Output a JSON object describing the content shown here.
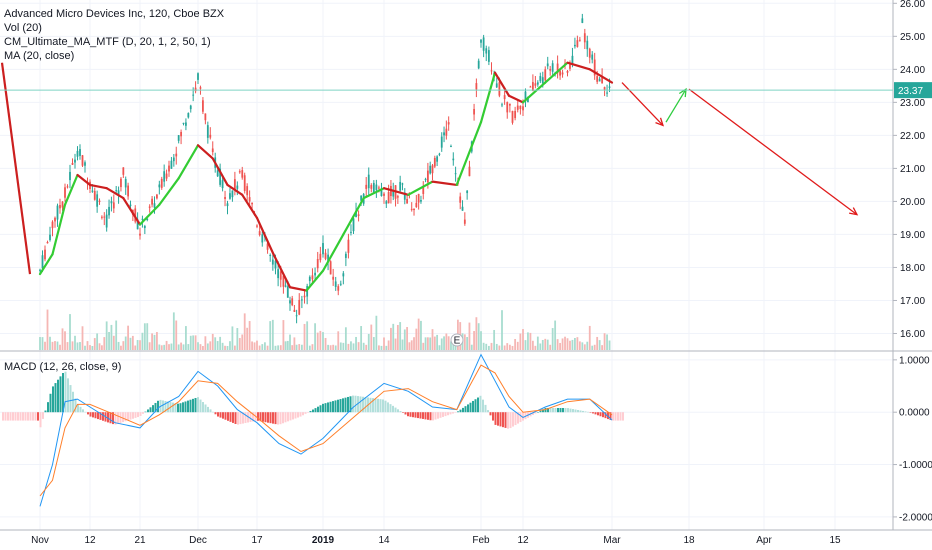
{
  "legend": {
    "title": "Advanced Micro Devices Inc, 120, Cboe BZX",
    "indicators": [
      "Vol (20)",
      "CM_Ultimate_MA_MTF (D, 20, 1, 2, 50, 1)",
      "MA (20, close)"
    ],
    "macd_label": "MACD (12, 26, close, 9)"
  },
  "price_badge": "23.37",
  "earnings_marker": "E",
  "colors": {
    "up": "#26a69a",
    "down": "#ef5350",
    "ma_up": "#33cc33",
    "ma_down": "#cc1f1f",
    "hline": "#7fd3c4",
    "macd": "#2196f3",
    "signal": "#ff7f2a",
    "badge": "#26a69a",
    "arrow_red": "#e01b1b",
    "arrow_green": "#2ecc40"
  },
  "chart_data": [
    {
      "type": "candlestick",
      "ylim": [
        15.5,
        26.1
      ],
      "y_ticks": [
        "26.00",
        "25.00",
        "24.00",
        "23.00",
        "22.00",
        "21.00",
        "20.00",
        "19.00",
        "18.00",
        "17.00",
        "16.00"
      ],
      "x_ticks": [
        "Nov",
        "12",
        "21",
        "Dec",
        "17",
        "2019",
        "14",
        "Feb",
        "12",
        "Mar",
        "18",
        "Apr",
        "15"
      ],
      "close_path": [
        [
          "Nov",
          17.9
        ],
        [
          "",
          19.3
        ],
        [
          "",
          20.2
        ],
        [
          "",
          21.6
        ],
        [
          "12",
          20.6
        ],
        [
          "",
          19.4
        ],
        [
          "",
          20.8
        ],
        [
          "21",
          19.1
        ],
        [
          "",
          20.3
        ],
        [
          "",
          21.8
        ],
        [
          "Dec",
          23.7
        ],
        [
          "",
          21.4
        ],
        [
          "",
          20.1
        ],
        [
          "",
          20.8
        ],
        [
          "17",
          19.4
        ],
        [
          "",
          18.3
        ],
        [
          "",
          17.6
        ],
        [
          "",
          16.6
        ],
        [
          "",
          17.5
        ],
        [
          "2019",
          18.6
        ],
        [
          "",
          17.3
        ],
        [
          "",
          19.3
        ],
        [
          "",
          20.6
        ],
        [
          "14",
          20.1
        ],
        [
          "",
          20.4
        ],
        [
          "",
          19.8
        ],
        [
          "",
          21.1
        ],
        [
          "",
          22.3
        ],
        [
          "",
          19.3
        ],
        [
          "Feb",
          25.0
        ],
        [
          "",
          24.2
        ],
        [
          "",
          23.1
        ],
        [
          "",
          22.6
        ],
        [
          "12",
          23.0
        ],
        [
          "",
          23.6
        ],
        [
          "",
          24.1
        ],
        [
          "",
          23.9
        ],
        [
          "",
          25.3
        ],
        [
          "",
          23.8
        ],
        [
          "Mar",
          23.37
        ]
      ],
      "ma_line": [
        [
          "Nov",
          17.8
        ],
        [
          "",
          18.4
        ],
        [
          "",
          19.9
        ],
        [
          "",
          20.8
        ],
        [
          "12",
          20.5
        ],
        [
          "",
          20.4
        ],
        [
          "",
          20.1
        ],
        [
          "21",
          19.3
        ],
        [
          "",
          19.9
        ],
        [
          "",
          20.7
        ],
        [
          "Dec",
          21.7
        ],
        [
          "",
          21.3
        ],
        [
          "",
          20.5
        ],
        [
          "",
          20.2
        ],
        [
          "17",
          19.5
        ],
        [
          "",
          18.4
        ],
        [
          "",
          17.4
        ],
        [
          "",
          17.3
        ],
        [
          "2019",
          17.9
        ],
        [
          "",
          19.0
        ],
        [
          "",
          20.1
        ],
        [
          "14",
          20.4
        ],
        [
          "",
          20.2
        ],
        [
          "",
          20.6
        ],
        [
          "",
          20.5
        ],
        [
          "Feb",
          22.4
        ],
        [
          "",
          23.9
        ],
        [
          "",
          23.2
        ],
        [
          "12",
          23.0
        ],
        [
          "",
          23.6
        ],
        [
          "",
          24.2
        ],
        [
          "",
          24.0
        ],
        [
          "Mar",
          23.6
        ]
      ],
      "projection": [
        {
          "from": [
            "Mar",
            23.6
          ],
          "to": [
            "",
            22.3
          ],
          "color": "red"
        },
        {
          "from": [
            "",
            22.4
          ],
          "to": [
            "18",
            23.4
          ],
          "color": "green"
        },
        {
          "from": [
            "18",
            23.4
          ],
          "to": [
            "15",
            19.6
          ],
          "color": "red"
        }
      ],
      "current_price": 23.37
    },
    {
      "type": "macd",
      "ylim": [
        -2.25,
        1.15
      ],
      "y_ticks": [
        "1.0000",
        "0.0000",
        "-1.0000",
        "-2.0000"
      ],
      "macd": [
        [
          "Nov",
          -1.8
        ],
        [
          "",
          -1.0
        ],
        [
          "",
          0.2
        ],
        [
          "",
          0.25
        ],
        [
          "12",
          0.1
        ],
        [
          "",
          -0.2
        ],
        [
          "21",
          -0.3
        ],
        [
          "",
          0.1
        ],
        [
          "",
          0.3
        ],
        [
          "Dec",
          0.78
        ],
        [
          "",
          0.5
        ],
        [
          "",
          0.05
        ],
        [
          "17",
          -0.2
        ],
        [
          "",
          -0.6
        ],
        [
          "",
          -0.8
        ],
        [
          "2019",
          -0.5
        ],
        [
          "",
          0.1
        ],
        [
          "14",
          0.55
        ],
        [
          "",
          0.4
        ],
        [
          "",
          0.1
        ],
        [
          "",
          0.05
        ],
        [
          "Feb",
          1.1
        ],
        [
          "",
          0.6
        ],
        [
          "",
          0.1
        ],
        [
          "12",
          -0.1
        ],
        [
          "",
          0.1
        ],
        [
          "",
          0.25
        ],
        [
          "",
          0.25
        ],
        [
          "Mar",
          -0.15
        ]
      ],
      "signal": [
        [
          "Nov",
          -1.6
        ],
        [
          "",
          -1.3
        ],
        [
          "",
          -0.3
        ],
        [
          "",
          0.15
        ],
        [
          "12",
          0.15
        ],
        [
          "",
          -0.05
        ],
        [
          "21",
          -0.25
        ],
        [
          "",
          -0.05
        ],
        [
          "",
          0.2
        ],
        [
          "Dec",
          0.6
        ],
        [
          "",
          0.55
        ],
        [
          "",
          0.2
        ],
        [
          "17",
          -0.1
        ],
        [
          "",
          -0.45
        ],
        [
          "",
          -0.75
        ],
        [
          "2019",
          -0.6
        ],
        [
          "",
          -0.1
        ],
        [
          "14",
          0.4
        ],
        [
          "",
          0.45
        ],
        [
          "",
          0.2
        ],
        [
          "",
          0.05
        ],
        [
          "Feb",
          0.9
        ],
        [
          "",
          0.75
        ],
        [
          "",
          0.3
        ],
        [
          "12",
          0.0
        ],
        [
          "",
          0.05
        ],
        [
          "",
          0.2
        ],
        [
          "",
          0.25
        ],
        [
          "Mar",
          -0.05
        ]
      ]
    }
  ]
}
